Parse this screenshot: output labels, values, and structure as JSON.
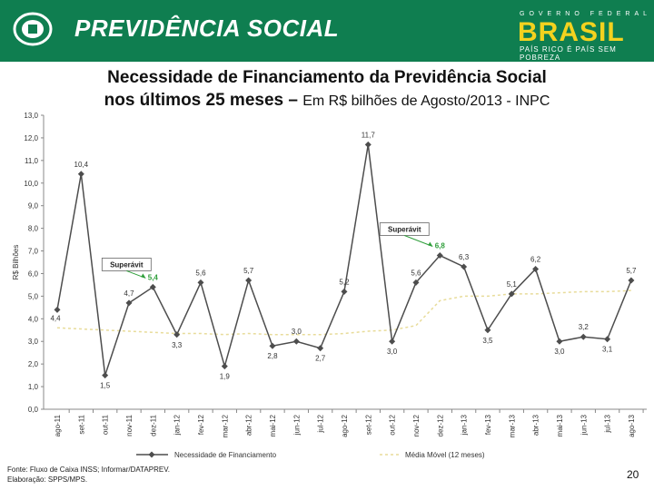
{
  "header": {
    "brand": "PREVIDÊNCIA SOCIAL",
    "gov_label": "GOVERNO FEDERAL",
    "brasil": "BRASIL",
    "slogan": "PAÍS RICO É PAÍS SEM POBREZA",
    "banner_color": "#0f7e50",
    "brasil_color": "#f3d21f"
  },
  "title": {
    "line1": "Necessidade de Financiamento da Previdência Social",
    "line2_bold": "nos últimos 25 meses – ",
    "line2_rest": "Em R$ bilhões de Agosto/2013 - INPC"
  },
  "chart_data": {
    "type": "line",
    "ylabel": "R$ Bilhões",
    "ylim": [
      0,
      13
    ],
    "yticks": [
      "0,0",
      "1,0",
      "2,0",
      "3,0",
      "4,0",
      "5,0",
      "6,0",
      "7,0",
      "8,0",
      "9,0",
      "10,0",
      "11,0",
      "12,0",
      "13,0"
    ],
    "categories": [
      "ago-11",
      "set-11",
      "out-11",
      "nov-11",
      "dez-11",
      "jan-12",
      "fev-12",
      "mar-12",
      "abr-12",
      "mai-12",
      "jun-12",
      "jul-12",
      "ago-12",
      "set-12",
      "out-12",
      "nov-12",
      "dez-12",
      "jan-13",
      "fev-13",
      "mar-13",
      "abr-13",
      "mai-13",
      "jun-13",
      "jul-13",
      "ago-13"
    ],
    "series": [
      {
        "name": "Necessidade de Financiamento",
        "color": "#4d4d4d",
        "values": [
          4.4,
          10.4,
          1.5,
          4.7,
          5.4,
          3.3,
          5.6,
          1.9,
          5.7,
          2.8,
          3.0,
          2.7,
          5.2,
          11.7,
          3.0,
          5.6,
          6.8,
          6.3,
          3.5,
          5.1,
          6.2,
          3.0,
          3.2,
          3.1,
          5.7
        ],
        "labels": [
          "4,4",
          "10,4",
          "1,5",
          "4,7",
          "5,4",
          "3,3",
          "5,6",
          "1,9",
          "5,7",
          "2,8",
          "3,0",
          "2,7",
          "5,2",
          "11,7",
          "3,0",
          "5,6",
          "6,8",
          "6,3",
          "3,5",
          "5,1",
          "6,2",
          "3,0",
          "3,2",
          "3,1",
          "5,7"
        ]
      },
      {
        "name": "Média Móvel (12 meses)",
        "color": "#e8dc9a",
        "values": [
          3.6,
          3.55,
          3.5,
          3.45,
          3.4,
          3.35,
          3.35,
          3.3,
          3.35,
          3.3,
          3.3,
          3.3,
          3.35,
          3.45,
          3.5,
          3.7,
          4.8,
          5.0,
          5.0,
          5.1,
          5.1,
          5.15,
          5.2,
          5.2,
          5.25
        ]
      }
    ],
    "annotations": [
      {
        "text": "Superávit",
        "target_index": 4
      },
      {
        "text": "Superávit",
        "target_index": 16
      }
    ],
    "highlight_color": "#2e9e3a",
    "grid": false,
    "legend": "bottom"
  },
  "footer": {
    "source": "Fonte: Fluxo de Caixa INSS; Informar/DATAPREV.",
    "credit": "Elaboração: SPPS/MPS.",
    "page_number": "20"
  }
}
